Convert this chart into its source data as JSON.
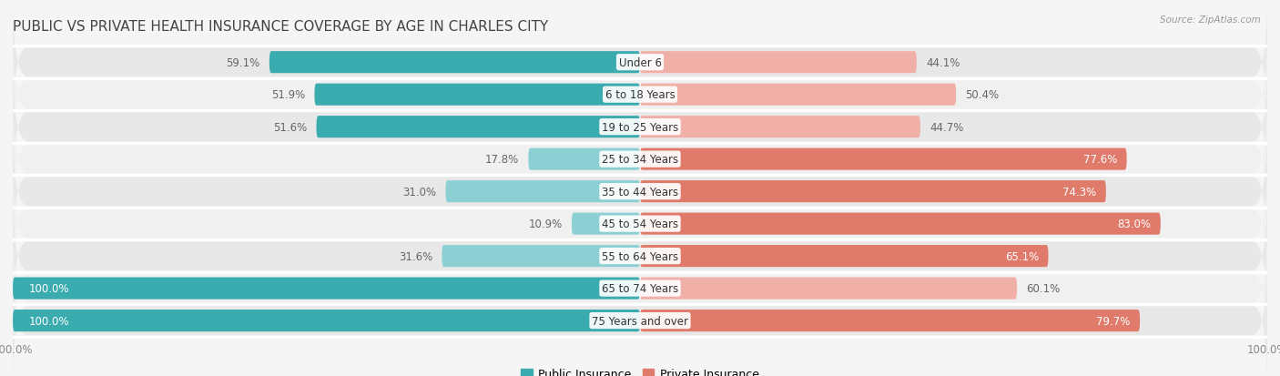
{
  "title": "PUBLIC VS PRIVATE HEALTH INSURANCE COVERAGE BY AGE IN CHARLES CITY",
  "source": "Source: ZipAtlas.com",
  "categories": [
    "Under 6",
    "6 to 18 Years",
    "19 to 25 Years",
    "25 to 34 Years",
    "35 to 44 Years",
    "45 to 54 Years",
    "55 to 64 Years",
    "65 to 74 Years",
    "75 Years and over"
  ],
  "public_values": [
    59.1,
    51.9,
    51.6,
    17.8,
    31.0,
    10.9,
    31.6,
    100.0,
    100.0
  ],
  "private_values": [
    44.1,
    50.4,
    44.7,
    77.6,
    74.3,
    83.0,
    65.1,
    60.1,
    79.7
  ],
  "public_color_dark": "#3aabaf",
  "public_color_light": "#8dd0d3",
  "private_color_dark": "#e07b6b",
  "private_color_light": "#f0b0a8",
  "row_bg_odd": "#e8e8e8",
  "row_bg_even": "#f0f0f0",
  "fig_bg": "#f5f5f5",
  "label_color_dark": "#666666",
  "label_color_white": "#ffffff",
  "axis_label_fontsize": 8.5,
  "bar_label_fontsize": 8.5,
  "title_fontsize": 11,
  "category_fontsize": 8.5,
  "legend_fontsize": 9,
  "max_value": 100.0,
  "public_dark_threshold": 50.0,
  "private_dark_threshold": 65.0
}
